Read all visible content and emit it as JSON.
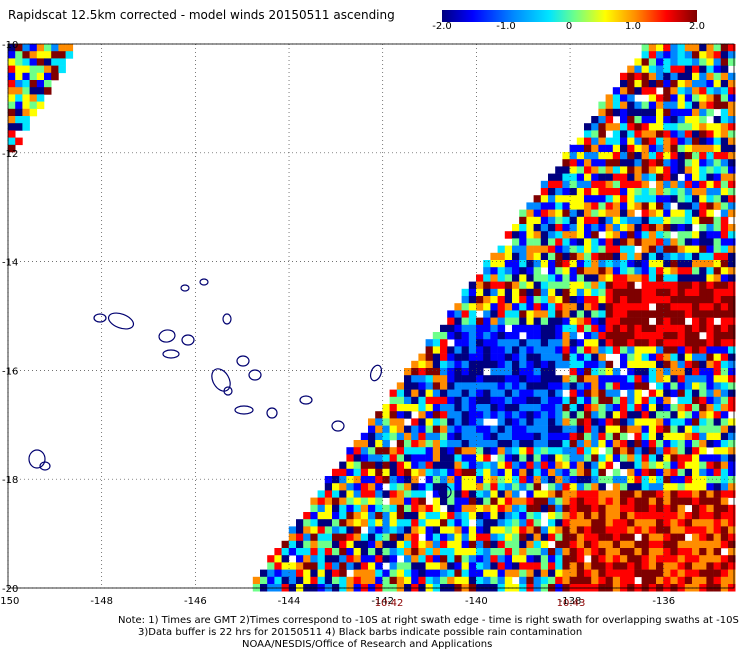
{
  "title": "Rapidscat 12.5km corrected - model winds 20150511 ascending",
  "colorbar": {
    "ticks": [
      "-2.0",
      "-1.0",
      "0",
      "1.0",
      "2.0"
    ],
    "tick_values": [
      -2.0,
      -1.0,
      0,
      1.0,
      2.0
    ],
    "range": [
      -2.0,
      2.0
    ],
    "colors": [
      "#00007f",
      "#0000ff",
      "#0088ff",
      "#00e5ff",
      "#6dff8a",
      "#ffff00",
      "#ff8c00",
      "#ff0000",
      "#7f0000"
    ]
  },
  "chart_data": {
    "type": "heatmap",
    "title": "Rapidscat 12.5km corrected - model winds 20150511 ascending",
    "x_ticks": [
      -150,
      -148,
      -146,
      -144,
      -142,
      -140,
      -138,
      -136
    ],
    "x_tick_labels": [
      "-150",
      "-148",
      "-146",
      "-144",
      "-142",
      "-140",
      "-138",
      "-136"
    ],
    "y_ticks": [
      -10,
      -12,
      -14,
      -16,
      -18,
      -20
    ],
    "y_tick_labels": [
      "-10",
      "-12",
      "-14",
      "-16",
      "-18",
      "-20"
    ],
    "xlim": [
      -150,
      -134.5
    ],
    "ylim": [
      -20,
      -10
    ],
    "grid": true,
    "time_labels": [
      {
        "lon": -142.2,
        "label": "10:42"
      },
      {
        "lon": -138.2,
        "label": "10:43"
      }
    ]
  },
  "notes": [
    "Note: 1) Times are GMT 2)Times correspond to -10S at right swath edge - time is right swath for overlapping swaths at -10S",
    "3)Data buffer is 22 hrs for 20150511 4) Black barbs indicate possible rain contamination",
    "NOAA/NESDIS/Office of Research and Applications"
  ]
}
